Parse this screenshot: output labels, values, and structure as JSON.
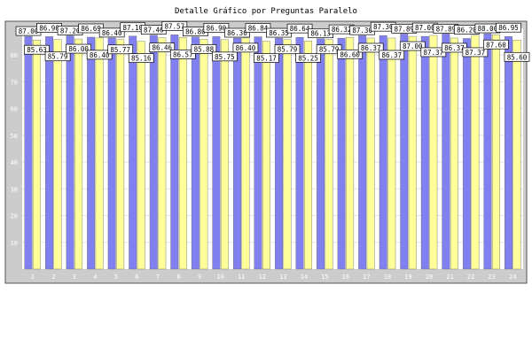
{
  "chart_data": {
    "type": "bar",
    "title": "Detalle Gráfico por Preguntas Paralelo",
    "xlabel": "",
    "ylabel": "",
    "ylim": [
      0,
      90
    ],
    "y_ticks": [
      10,
      20,
      30,
      40,
      50,
      60,
      70,
      80
    ],
    "grid": true,
    "categories": [
      "1",
      "2",
      "3",
      "4",
      "5",
      "6",
      "7",
      "8",
      "9",
      "10",
      "11",
      "12",
      "13",
      "14",
      "15",
      "16",
      "17",
      "18",
      "19",
      "20",
      "21",
      "22",
      "23",
      "24"
    ],
    "series": [
      {
        "name": "",
        "color": "#8080f0",
        "values": [
          87.0,
          86.9,
          87.2,
          86.69,
          86.4,
          87.1,
          87.46,
          87.57,
          86.8,
          86.9,
          86.36,
          86.84,
          86.35,
          86.64,
          86.13,
          86.32,
          87.3,
          87.3,
          87.89,
          87.0,
          87.89,
          86.2,
          88.0,
          86.95
        ]
      },
      {
        "name": "",
        "color": "#ffff99",
        "values": [
          85.63,
          85.79,
          86.0,
          86.4,
          85.77,
          85.16,
          86.46,
          86.57,
          85.88,
          85.75,
          86.4,
          85.17,
          85.79,
          85.25,
          85.79,
          86.6,
          86.37,
          86.37,
          87.0,
          87.37,
          86.37,
          87.37,
          87.6,
          85.6
        ]
      }
    ]
  }
}
